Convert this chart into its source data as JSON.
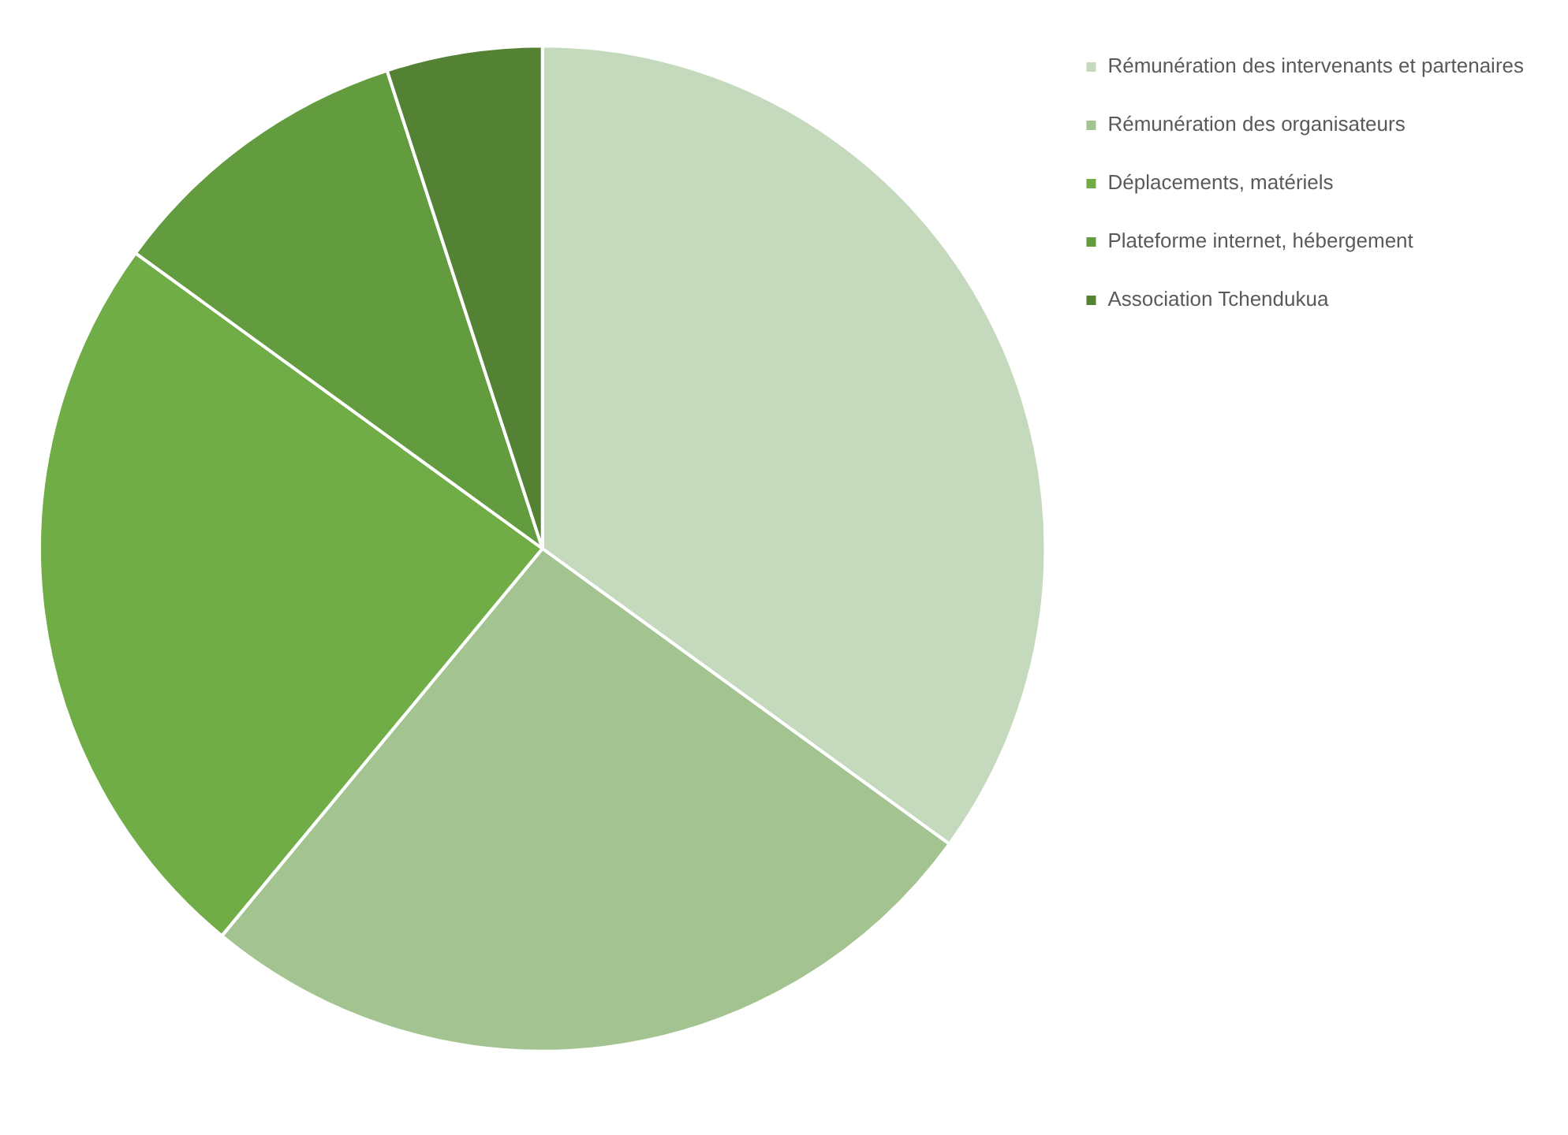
{
  "chart_data": {
    "type": "pie",
    "categories": [
      "Rémunération des intervenants et partenaires",
      "Rémunération des organisateurs",
      "Déplacements, matériels",
      "Plateforme internet, hébergement",
      "Association Tchendukua"
    ],
    "values": [
      35,
      26,
      24,
      10,
      5
    ],
    "colors": [
      "#c5d9bc",
      "#a3c491",
      "#70ad47",
      "#629c3f",
      "#548235"
    ],
    "legend": "top right"
  }
}
